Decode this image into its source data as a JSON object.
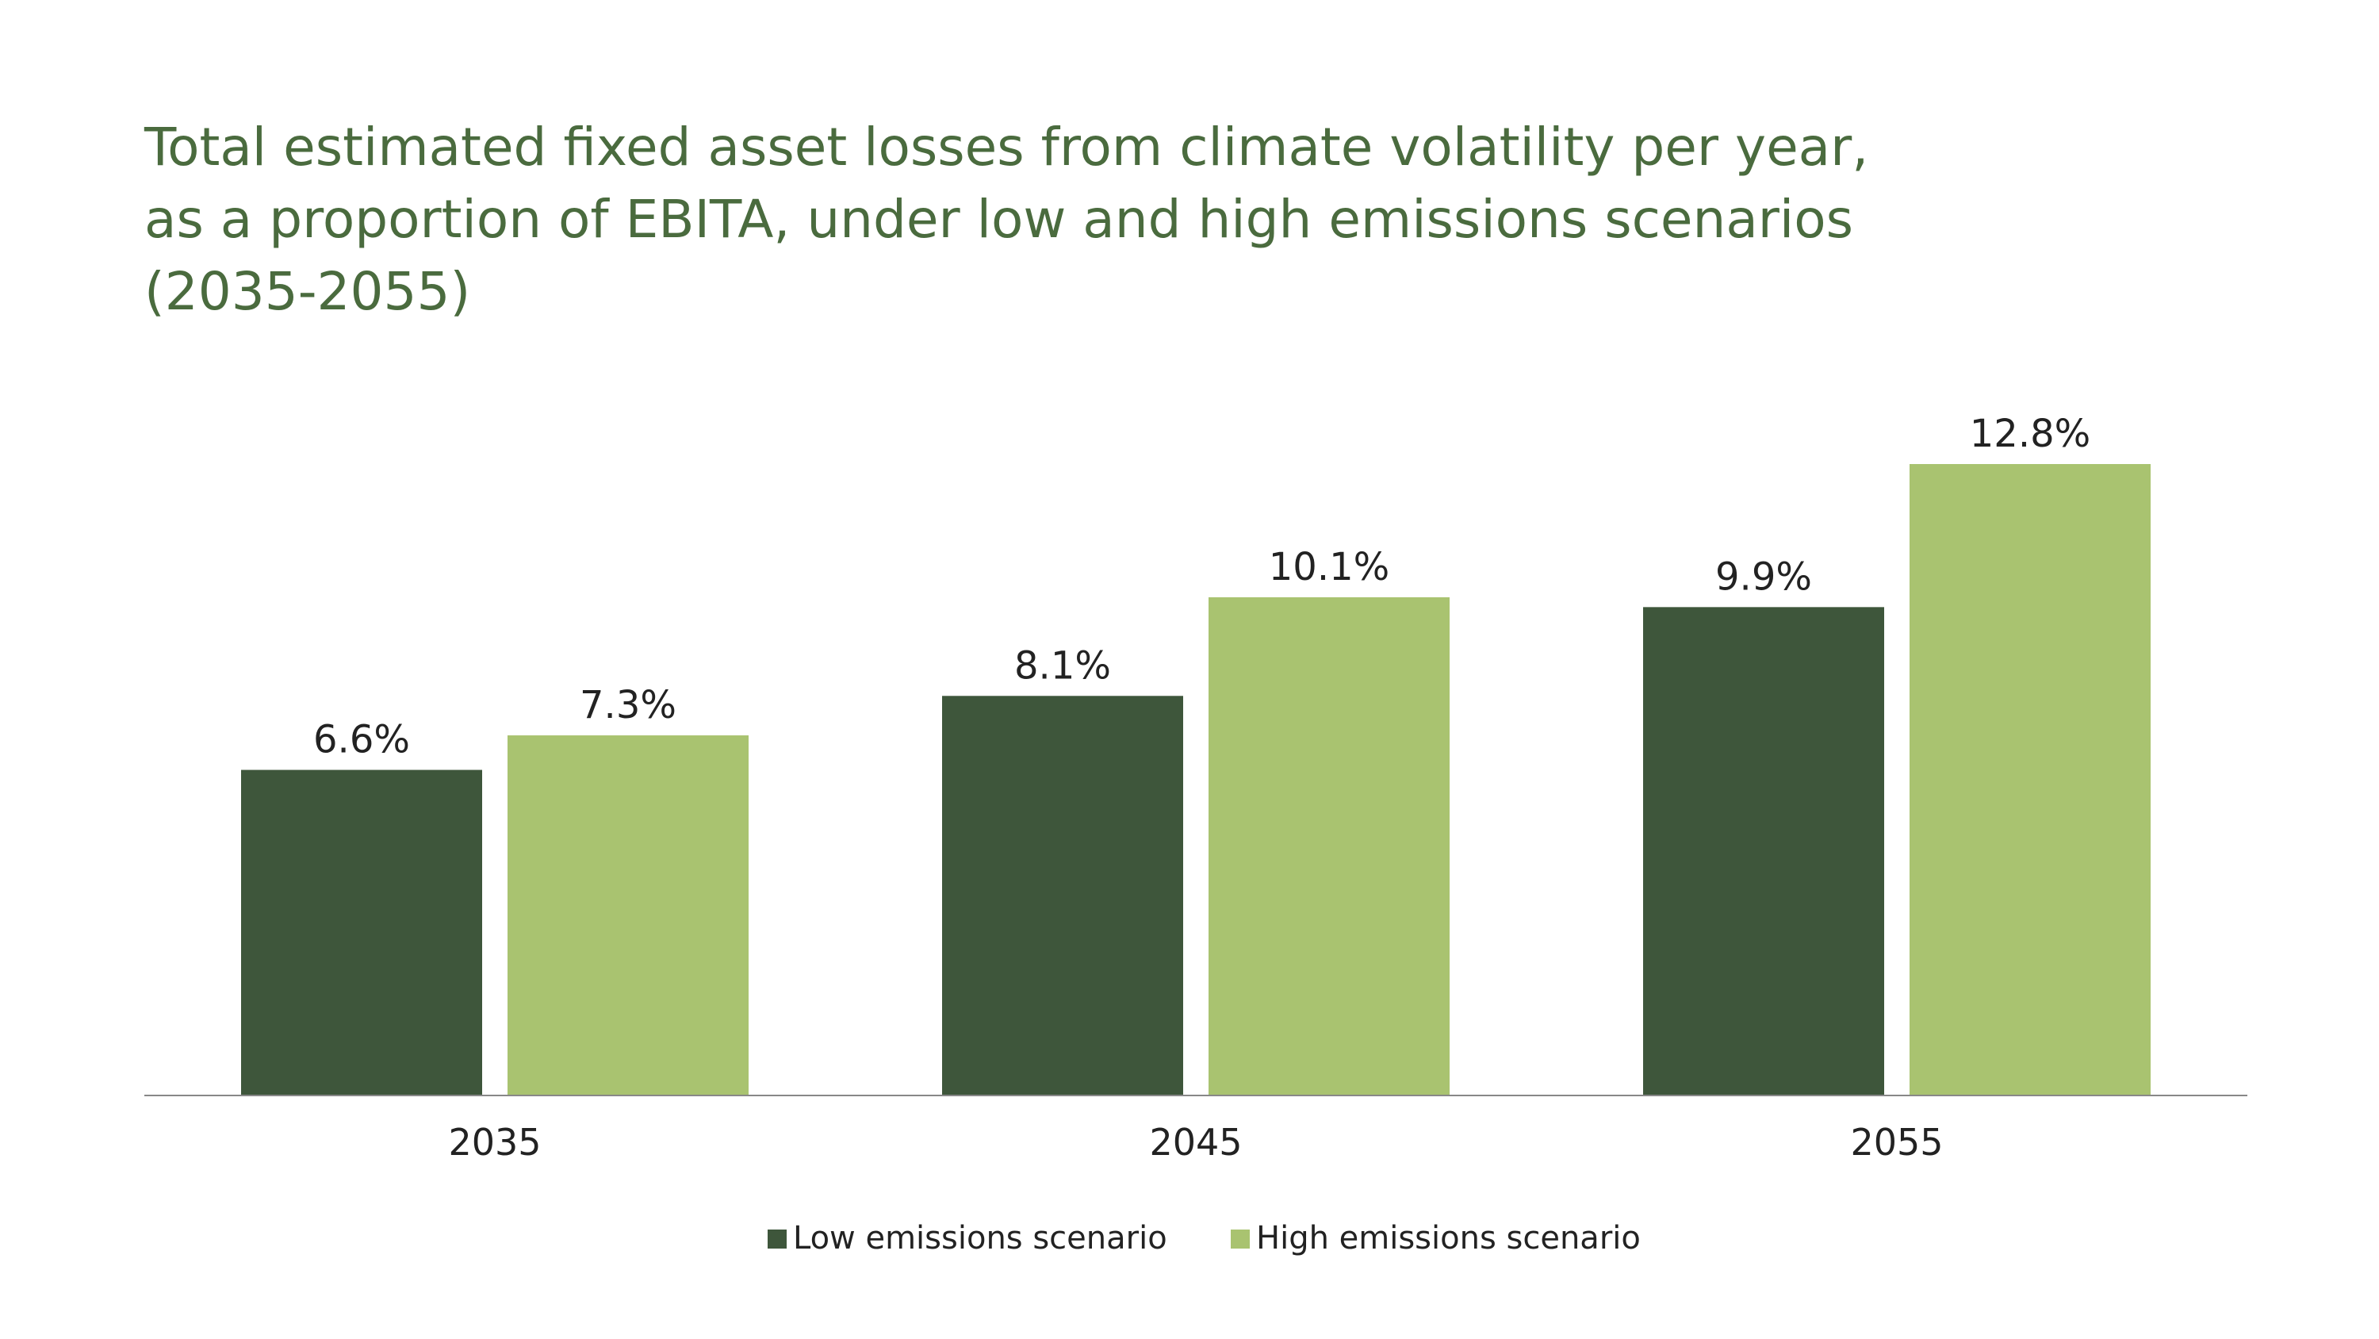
{
  "chart_data": {
    "type": "bar",
    "title": [
      "Total estimated fixed asset losses from climate volatility per year,",
      "as a proportion of EBITA, under low and high emissions scenarios",
      "(2035-2055)"
    ],
    "categories": [
      "2035",
      "2045",
      "2055"
    ],
    "series": [
      {
        "name": "Low emissions scenario",
        "color": "#3e563b",
        "values": [
          6.6,
          8.1,
          9.9
        ],
        "labels": [
          "6.6%",
          "8.1%",
          "9.9%"
        ]
      },
      {
        "name": "High emissions scenario",
        "color": "#a9c370",
        "values": [
          7.3,
          10.1,
          12.8
        ],
        "labels": [
          "7.3%",
          "10.1%",
          "12.8%"
        ]
      }
    ],
    "ylim": [
      0,
      12.8
    ],
    "grid": false,
    "legend_position": "bottom-center",
    "title_color": "#4a6b3e",
    "axis_color": "#888888"
  }
}
